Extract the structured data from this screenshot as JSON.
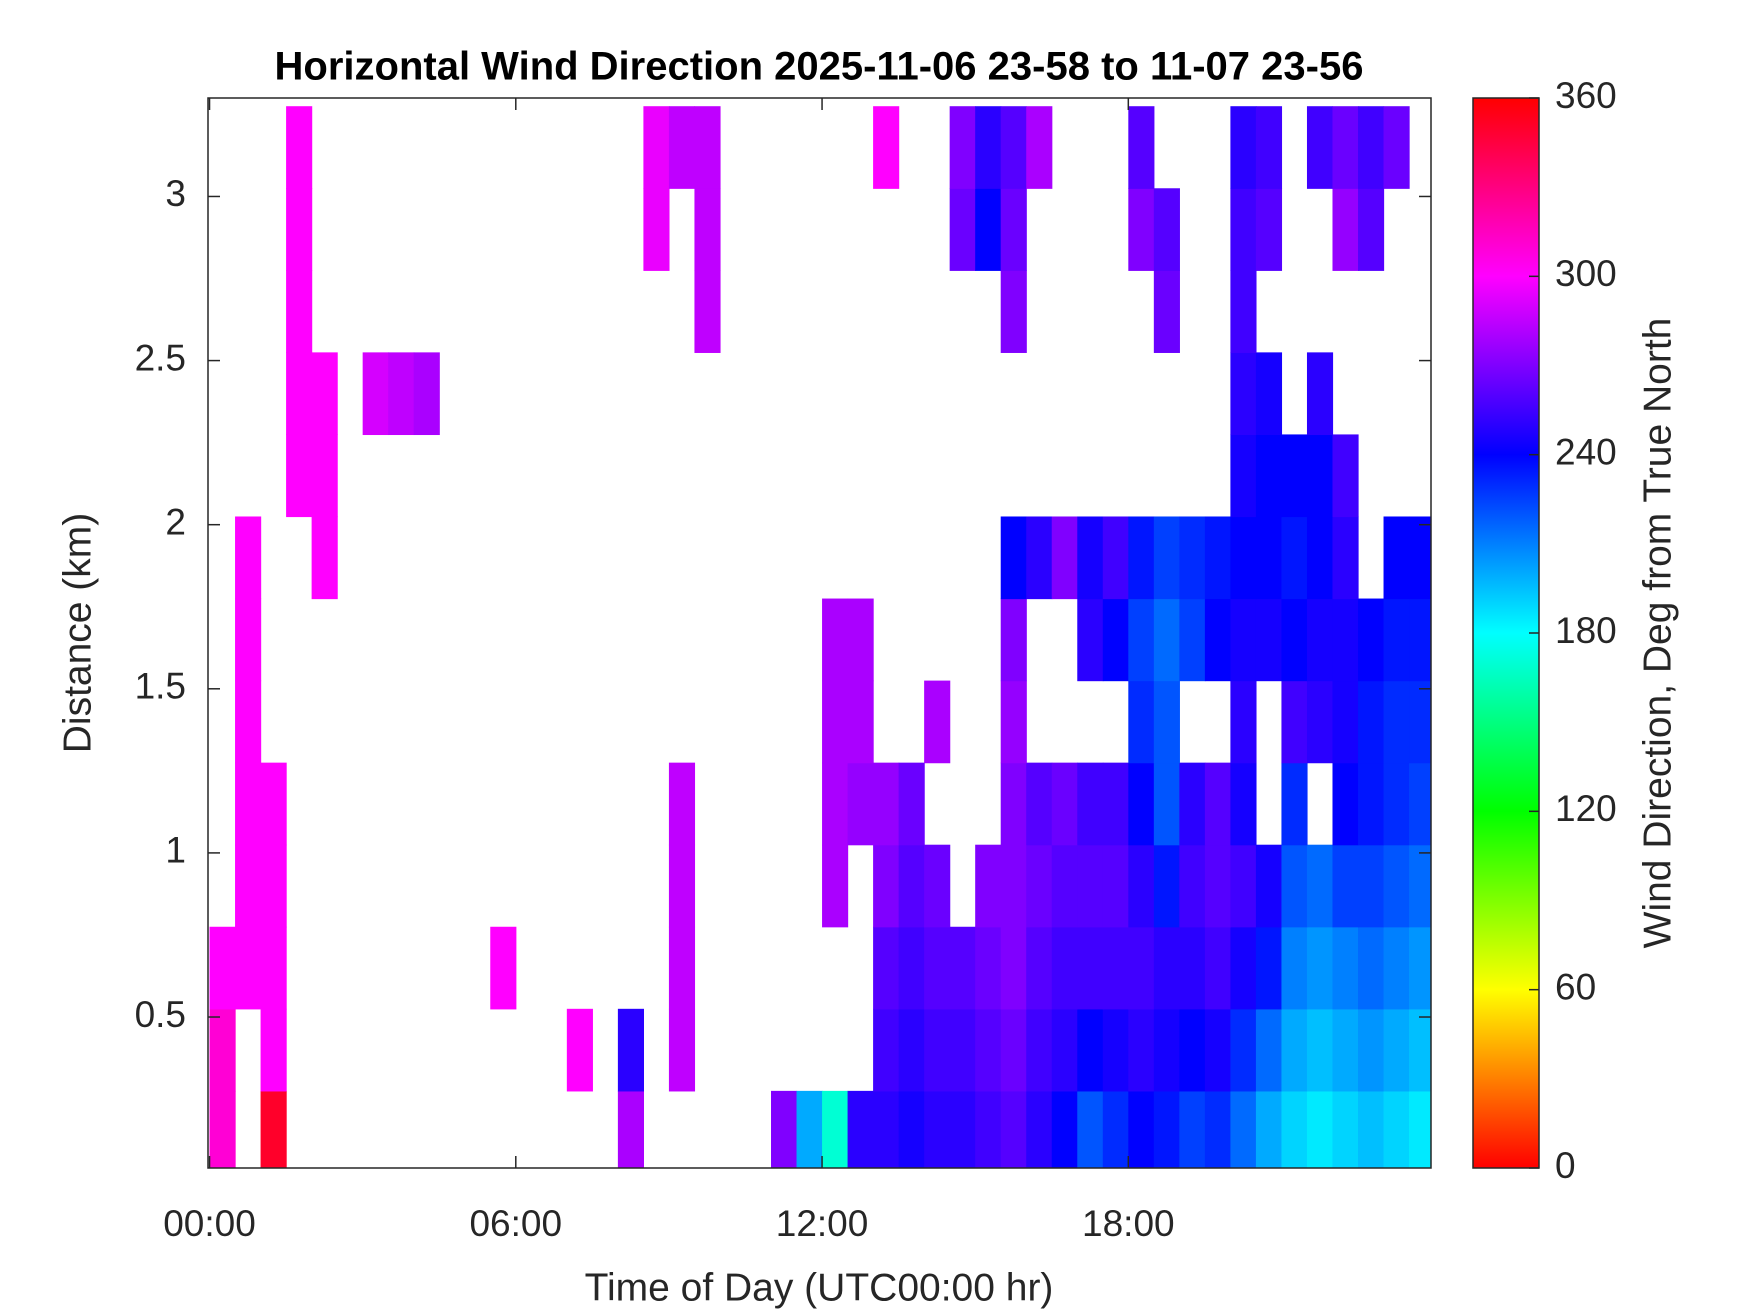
{
  "chart_data": {
    "type": "heatmap",
    "title": "Horizontal Wind Direction 2025-11-06 23-58 to 11-07 23-56",
    "x_label": "Time of Day (UTC00:00 hr)",
    "y_label": "Distance (km)",
    "colorbar_label": "Wind Direction, Deg from True North",
    "colormap": "hsv",
    "xlim": [
      -0.03,
      23.93
    ],
    "ylim": [
      0.04,
      3.3
    ],
    "clim": [
      0,
      360
    ],
    "xticks": [
      {
        "value": 0,
        "label": "00:00"
      },
      {
        "value": 6,
        "label": "06:00"
      },
      {
        "value": 12,
        "label": "12:00"
      },
      {
        "value": 18,
        "label": "18:00"
      }
    ],
    "yticks": [
      0.5,
      1,
      1.5,
      2,
      2.5,
      3
    ],
    "cticks": [
      0,
      60,
      120,
      180,
      240,
      300,
      360
    ],
    "x": [
      0.25,
      0.75,
      1.25,
      1.75,
      2.25,
      2.75,
      3.25,
      3.75,
      4.25,
      4.75,
      5.25,
      5.75,
      6.25,
      6.75,
      7.25,
      7.75,
      8.25,
      8.75,
      9.25,
      9.75,
      10.25,
      10.75,
      11.25,
      11.75,
      12.25,
      12.75,
      13.25,
      13.75,
      14.25,
      14.75,
      15.25,
      15.75,
      16.25,
      16.75,
      17.25,
      17.75,
      18.25,
      18.75,
      19.25,
      19.75,
      20.25,
      20.75,
      21.25,
      21.75,
      22.25,
      22.75,
      23.25,
      23.75
    ],
    "y": [
      0.15,
      0.4,
      0.65,
      0.9,
      1.15,
      1.4,
      1.65,
      1.9,
      2.15,
      2.4,
      2.65,
      2.9,
      3.15
    ],
    "z": [
      [
        310,
        null,
        350,
        null,
        null,
        null,
        null,
        null,
        null,
        null,
        null,
        null,
        null,
        null,
        null,
        null,
        280,
        null,
        null,
        null,
        null,
        null,
        270,
        200,
        170,
        250,
        250,
        245,
        250,
        250,
        255,
        260,
        250,
        240,
        220,
        230,
        240,
        235,
        225,
        230,
        215,
        200,
        190,
        185,
        190,
        195,
        190,
        185
      ],
      [
        310,
        null,
        300,
        null,
        null,
        null,
        null,
        null,
        null,
        null,
        null,
        null,
        null,
        null,
        300,
        null,
        250,
        null,
        285,
        null,
        null,
        null,
        null,
        null,
        null,
        null,
        255,
        250,
        255,
        255,
        260,
        265,
        255,
        250,
        240,
        245,
        250,
        245,
        240,
        245,
        230,
        215,
        200,
        195,
        200,
        205,
        200,
        195
      ],
      [
        300,
        300,
        300,
        null,
        null,
        null,
        null,
        null,
        null,
        null,
        null,
        300,
        null,
        null,
        null,
        null,
        null,
        null,
        285,
        null,
        null,
        null,
        null,
        null,
        null,
        null,
        260,
        255,
        260,
        260,
        265,
        270,
        260,
        255,
        255,
        255,
        255,
        250,
        250,
        255,
        245,
        235,
        210,
        205,
        210,
        215,
        210,
        205
      ],
      [
        null,
        300,
        300,
        null,
        null,
        null,
        null,
        null,
        null,
        null,
        null,
        null,
        null,
        null,
        null,
        null,
        null,
        null,
        285,
        null,
        null,
        null,
        null,
        null,
        280,
        null,
        270,
        260,
        265,
        null,
        270,
        270,
        265,
        260,
        260,
        260,
        250,
        235,
        255,
        260,
        255,
        245,
        220,
        215,
        225,
        225,
        220,
        215
      ],
      [
        null,
        300,
        300,
        null,
        null,
        null,
        null,
        null,
        null,
        null,
        null,
        null,
        null,
        null,
        null,
        null,
        null,
        null,
        285,
        null,
        null,
        null,
        null,
        null,
        280,
        275,
        275,
        265,
        null,
        null,
        null,
        270,
        260,
        265,
        255,
        255,
        240,
        220,
        250,
        260,
        245,
        null,
        230,
        null,
        240,
        235,
        230,
        225
      ],
      [
        null,
        300,
        null,
        null,
        null,
        null,
        null,
        null,
        null,
        null,
        null,
        null,
        null,
        null,
        null,
        null,
        null,
        null,
        null,
        null,
        null,
        null,
        null,
        null,
        280,
        280,
        null,
        null,
        280,
        null,
        null,
        275,
        null,
        null,
        null,
        null,
        230,
        220,
        null,
        null,
        250,
        null,
        255,
        250,
        245,
        235,
        230,
        230
      ],
      [
        null,
        300,
        null,
        null,
        null,
        null,
        null,
        null,
        null,
        null,
        null,
        null,
        null,
        null,
        null,
        null,
        null,
        null,
        null,
        null,
        null,
        null,
        null,
        null,
        280,
        280,
        null,
        null,
        null,
        null,
        null,
        270,
        null,
        null,
        250,
        240,
        225,
        215,
        225,
        240,
        245,
        245,
        240,
        245,
        245,
        240,
        235,
        235
      ],
      [
        null,
        300,
        null,
        null,
        300,
        null,
        null,
        null,
        null,
        null,
        null,
        null,
        null,
        null,
        null,
        null,
        null,
        null,
        null,
        null,
        null,
        null,
        null,
        null,
        null,
        null,
        null,
        null,
        null,
        null,
        null,
        240,
        250,
        270,
        245,
        255,
        235,
        225,
        230,
        235,
        240,
        240,
        235,
        240,
        250,
        null,
        240,
        240
      ],
      [
        null,
        null,
        null,
        300,
        300,
        null,
        null,
        null,
        null,
        null,
        null,
        null,
        null,
        null,
        null,
        null,
        null,
        null,
        null,
        null,
        null,
        null,
        null,
        null,
        null,
        null,
        null,
        null,
        null,
        null,
        null,
        null,
        null,
        null,
        null,
        null,
        null,
        null,
        null,
        null,
        245,
        240,
        240,
        240,
        255,
        null,
        null,
        null
      ],
      [
        null,
        null,
        null,
        300,
        300,
        null,
        290,
        285,
        280,
        null,
        null,
        null,
        null,
        null,
        null,
        null,
        null,
        null,
        null,
        null,
        null,
        null,
        null,
        null,
        null,
        null,
        null,
        null,
        null,
        null,
        null,
        null,
        null,
        null,
        null,
        null,
        null,
        null,
        null,
        null,
        250,
        245,
        null,
        250,
        null,
        null,
        null,
        null
      ],
      [
        null,
        null,
        null,
        300,
        null,
        null,
        null,
        null,
        null,
        null,
        null,
        null,
        null,
        null,
        null,
        null,
        null,
        null,
        null,
        285,
        null,
        null,
        null,
        null,
        null,
        null,
        null,
        null,
        null,
        null,
        null,
        270,
        null,
        null,
        null,
        null,
        null,
        265,
        null,
        null,
        255,
        null,
        null,
        null,
        null,
        null,
        null,
        null
      ],
      [
        null,
        null,
        null,
        300,
        null,
        null,
        null,
        null,
        null,
        null,
        null,
        null,
        null,
        null,
        null,
        null,
        null,
        295,
        null,
        285,
        null,
        null,
        null,
        null,
        null,
        null,
        null,
        null,
        null,
        265,
        240,
        265,
        null,
        null,
        null,
        null,
        270,
        260,
        null,
        null,
        255,
        260,
        null,
        null,
        275,
        260,
        null,
        null
      ],
      [
        null,
        null,
        null,
        300,
        null,
        null,
        null,
        null,
        null,
        null,
        null,
        null,
        null,
        null,
        null,
        null,
        null,
        295,
        285,
        285,
        null,
        null,
        null,
        null,
        null,
        null,
        300,
        null,
        null,
        270,
        250,
        260,
        280,
        null,
        null,
        null,
        260,
        null,
        null,
        null,
        250,
        255,
        null,
        255,
        265,
        255,
        265,
        null
      ]
    ]
  }
}
